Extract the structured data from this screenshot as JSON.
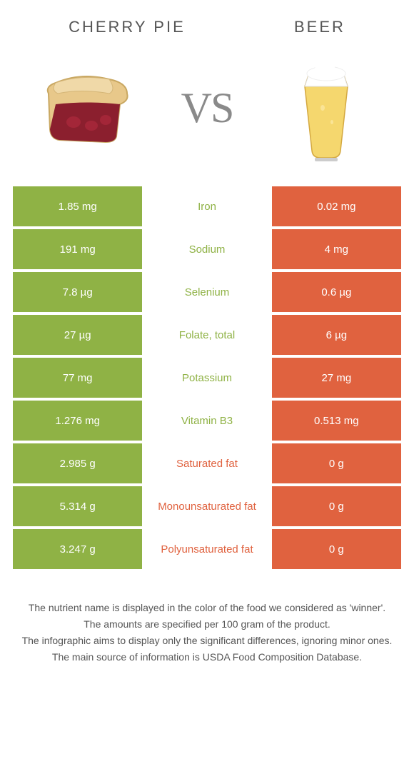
{
  "header": {
    "left_title": "CHERRY PIE",
    "right_title": "BEER",
    "vs": "VS"
  },
  "colors": {
    "green": "#8fb245",
    "orange": "#e0623f",
    "text": "#555555"
  },
  "rows": [
    {
      "left": "1.85 mg",
      "label": "Iron",
      "winner": "green",
      "right": "0.02 mg"
    },
    {
      "left": "191 mg",
      "label": "Sodium",
      "winner": "green",
      "right": "4 mg"
    },
    {
      "left": "7.8 µg",
      "label": "Selenium",
      "winner": "green",
      "right": "0.6 µg"
    },
    {
      "left": "27 µg",
      "label": "Folate, total",
      "winner": "green",
      "right": "6 µg"
    },
    {
      "left": "77 mg",
      "label": "Potassium",
      "winner": "green",
      "right": "27 mg"
    },
    {
      "left": "1.276 mg",
      "label": "Vitamin B3",
      "winner": "green",
      "right": "0.513 mg"
    },
    {
      "left": "2.985 g",
      "label": "Saturated fat",
      "winner": "orange",
      "right": "0 g"
    },
    {
      "left": "5.314 g",
      "label": "Monounsaturated fat",
      "winner": "orange",
      "right": "0 g"
    },
    {
      "left": "3.247 g",
      "label": "Polyunsaturated fat",
      "winner": "orange",
      "right": "0 g"
    }
  ],
  "footer": {
    "line1": "The nutrient name is displayed in the color of the food we considered as 'winner'.",
    "line2": "The amounts are specified per 100 gram of the product.",
    "line3": "The infographic aims to display only the significant differences, ignoring minor ones.",
    "line4": "The main source of information is USDA Food Composition Database."
  }
}
